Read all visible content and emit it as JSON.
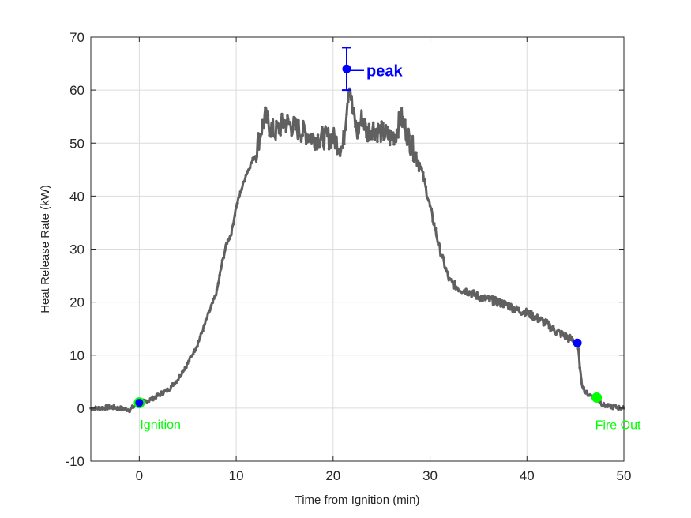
{
  "chart_data": {
    "type": "line",
    "title": "",
    "xlabel": "Time from Ignition (min)",
    "ylabel": "Heat Release Rate (kW)",
    "xlim": [
      -5,
      50
    ],
    "ylim": [
      -10,
      70
    ],
    "xticks": [
      0,
      10,
      20,
      30,
      40,
      50
    ],
    "yticks": [
      -10,
      0,
      10,
      20,
      30,
      40,
      50,
      60,
      70
    ],
    "grid": true,
    "legend": null,
    "series": [
      {
        "name": "Heat Release Rate",
        "color": "#606060",
        "marker": "dot",
        "x": [
          -5,
          -4,
          -3,
          -2,
          -1,
          0,
          1,
          2,
          3,
          4,
          5,
          6,
          7,
          8,
          8.5,
          9,
          9.5,
          10,
          10.5,
          11,
          11.5,
          12,
          12.5,
          13,
          13.5,
          14,
          15,
          16,
          17,
          18,
          19,
          20,
          21,
          21.4,
          21.7,
          22,
          22.5,
          23,
          23.5,
          24,
          25,
          26,
          26.5,
          27,
          28,
          29,
          30,
          31,
          32,
          33,
          34,
          35,
          36,
          37,
          38,
          39,
          40,
          41,
          42,
          43,
          44,
          45,
          45.3,
          45.6,
          46,
          47,
          48,
          49,
          50
        ],
        "y": [
          0,
          0,
          0.2,
          0,
          -0.3,
          1,
          1.5,
          2.5,
          3.5,
          5.5,
          8.5,
          12,
          17,
          22,
          27,
          31,
          33,
          38,
          41,
          44,
          46,
          48,
          52,
          55,
          53,
          52,
          54,
          53,
          52,
          51,
          51,
          51,
          49,
          57,
          62,
          56,
          52,
          55,
          52,
          53,
          52,
          51,
          52,
          55,
          50,
          46,
          38,
          30,
          24,
          22.5,
          22,
          21,
          20.5,
          20,
          19.5,
          18.5,
          18,
          17,
          16,
          14.5,
          13.5,
          12.5,
          11,
          5,
          3,
          2,
          0.5,
          0.2,
          0
        ]
      }
    ],
    "markers": [
      {
        "label": "Ignition",
        "x": 0,
        "y": 1,
        "fill": "#0000ff",
        "edge": "#00ff00",
        "label_color": "#00ff00"
      },
      {
        "label": "peak",
        "x": 21.4,
        "y": 64,
        "fill": "#0000ff",
        "error_bar": [
          60,
          68
        ],
        "label_color": "#0000ff"
      },
      {
        "label": "",
        "x": 45.2,
        "y": 12.3,
        "fill": "#0000ff"
      },
      {
        "label": "Fire Out",
        "x": 47.2,
        "y": 2,
        "fill": "#00ff00",
        "label_color": "#00ff00"
      }
    ]
  },
  "annotations": {
    "ignition": "Ignition",
    "peak": "peak",
    "fire_out": "Fire Out"
  },
  "colors": {
    "curve": "#606060",
    "blue_marker": "#0000ff",
    "green_marker": "#00ff00",
    "grid": "#dcdcdc",
    "axis": "#262626"
  }
}
